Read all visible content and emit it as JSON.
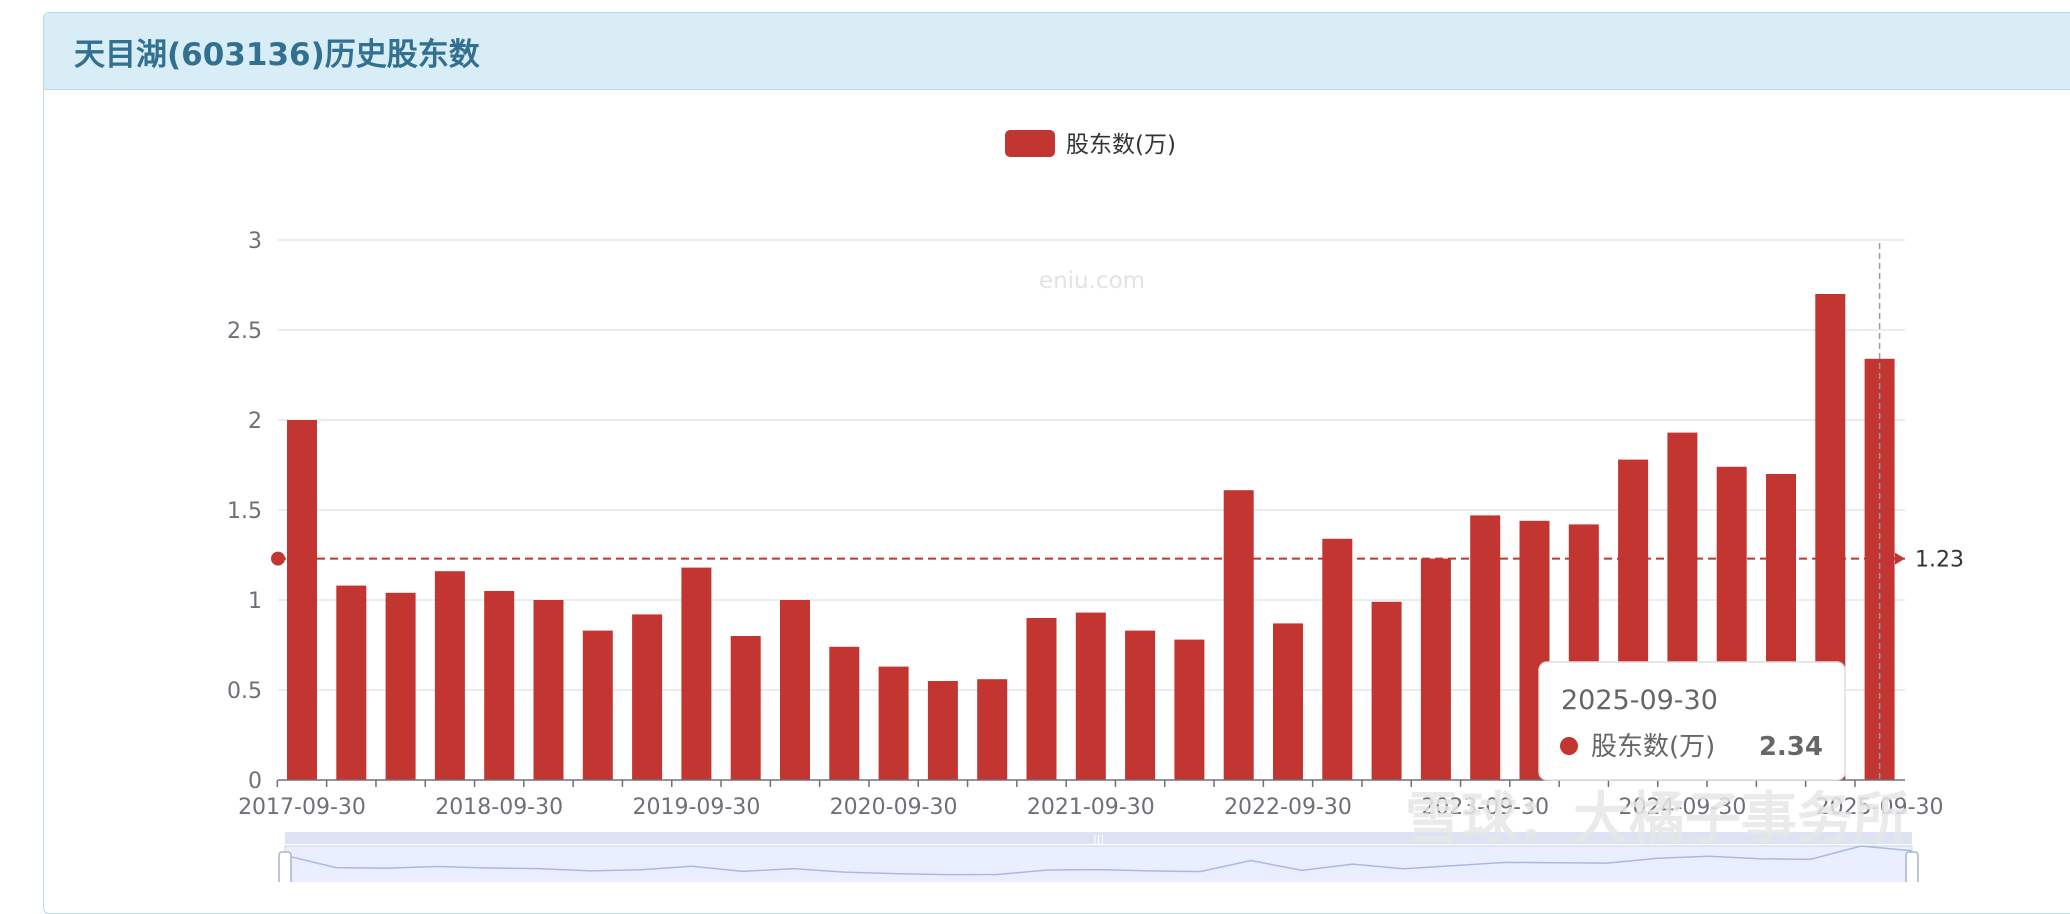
{
  "panel": {
    "title": "天目湖(603136)历史股东数"
  },
  "watermark": "eniu.com",
  "overlay_watermark": "雪球：大橘子事务所",
  "colors": {
    "bar": "#c23531",
    "grid": "#e0e6f1",
    "axis": "#6e7079",
    "header_bg": "#d9edf7",
    "header_text": "#31708f"
  },
  "tooltip": {
    "date": "2025-09-30",
    "series_name": "股东数(万)",
    "value": "2.34"
  },
  "chart_data": {
    "type": "bar",
    "legend": [
      "股东数(万)"
    ],
    "legend_position": "top-center",
    "series": [
      {
        "name": "股东数(万)",
        "values": [
          2.0,
          1.08,
          1.04,
          1.16,
          1.05,
          1.0,
          0.83,
          0.92,
          1.18,
          0.8,
          1.0,
          0.74,
          0.63,
          0.55,
          0.56,
          0.9,
          0.93,
          0.83,
          0.78,
          1.61,
          0.87,
          1.34,
          0.99,
          1.23,
          1.47,
          1.44,
          1.42,
          1.78,
          1.93,
          1.74,
          1.7,
          2.7,
          2.34
        ]
      }
    ],
    "tick_labels_x": [
      "2017-09-30",
      "2018-09-30",
      "2019-09-30",
      "2020-09-30",
      "2021-09-30",
      "2022-09-30",
      "2023-09-30",
      "2024-09-30",
      "2025-09-30"
    ],
    "tick_labels_y": [
      "0",
      "0.5",
      "1",
      "1.5",
      "2",
      "2.5",
      "3"
    ],
    "ylim": [
      0,
      3
    ],
    "average_line": {
      "value": 1.23,
      "label": "1.23"
    },
    "grid": true
  }
}
